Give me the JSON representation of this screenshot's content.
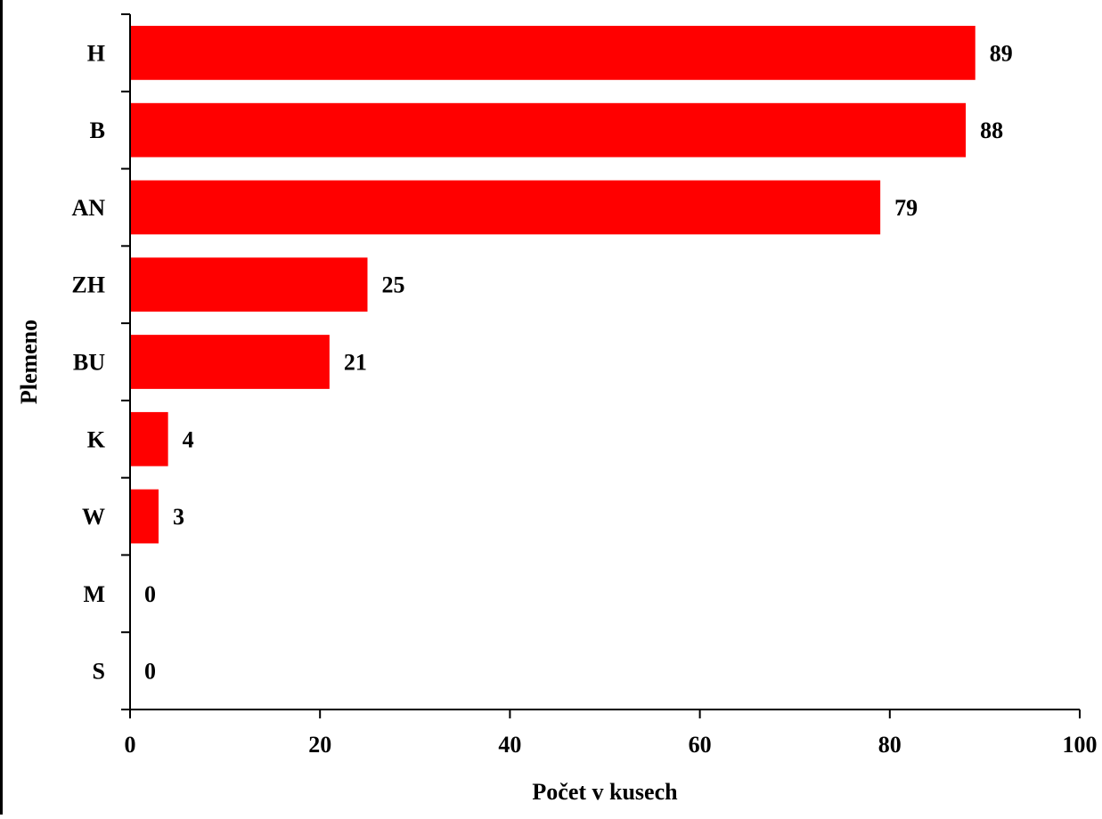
{
  "chart_data": {
    "type": "bar",
    "orientation": "horizontal",
    "categories": [
      "H",
      "B",
      "AN",
      "ZH",
      "BU",
      "K",
      "W",
      "M",
      "S"
    ],
    "values": [
      89,
      88,
      79,
      25,
      21,
      4,
      3,
      0,
      0
    ],
    "value_labels": [
      "89",
      "88",
      "79",
      "25",
      "21",
      "4",
      "3",
      "0",
      "0"
    ],
    "xlabel": "Počet v kusech",
    "ylabel": "Plemeno",
    "xlim": [
      0,
      100
    ],
    "x_ticks": [
      0,
      20,
      40,
      60,
      80,
      100
    ],
    "grid": false,
    "legend": "none",
    "bar_color": "#ff0000"
  }
}
